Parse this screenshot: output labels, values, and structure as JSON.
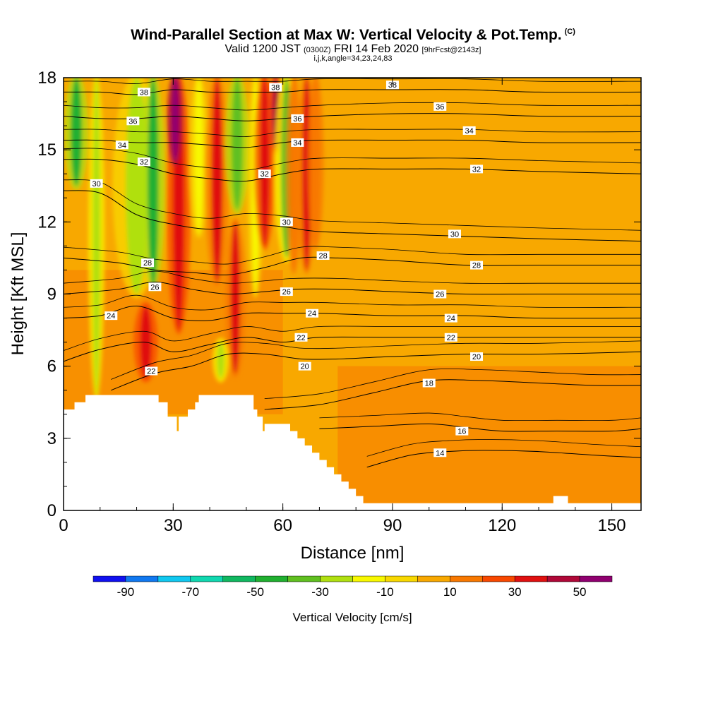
{
  "header": {
    "title": "Wind-Parallel Section at Max W: Vertical Velocity & Pot.Temp.",
    "title_mark": "(C)",
    "subtitle_valid": "Valid 1200 JST",
    "subtitle_z": "(0300Z)",
    "subtitle_date": "FRI 14 Feb 2020",
    "subtitle_fcst": "[9hrFcst@2143z]",
    "subline": "i,j,k,angle=34,23,24,83"
  },
  "chart_data": {
    "type": "heatmap",
    "xlabel": "Distance [nm]",
    "ylabel": "Height [Kft MSL]",
    "xlim": [
      0,
      158
    ],
    "ylim": [
      0,
      18
    ],
    "x_ticks": [
      "0",
      "30",
      "60",
      "90",
      "120",
      "150"
    ],
    "y_ticks": [
      "0",
      "3",
      "6",
      "9",
      "12",
      "15",
      "18"
    ],
    "colorbar": {
      "label": "Vertical Velocity [cm/s]",
      "tick_labels": [
        "-90",
        "-70",
        "-50",
        "-30",
        "-10",
        "10",
        "30",
        "50"
      ],
      "bins": [
        -100,
        -90,
        -80,
        -70,
        -60,
        -50,
        -40,
        -30,
        -20,
        -10,
        0,
        10,
        20,
        30,
        40,
        50,
        60
      ],
      "colors": [
        "#1010f0",
        "#1078f0",
        "#10c8f0",
        "#10d8b0",
        "#10b860",
        "#20b030",
        "#60c020",
        "#b0e010",
        "#f8f800",
        "#f8d800",
        "#f8a800",
        "#f87800",
        "#f84800",
        "#e01010",
        "#b00838",
        "#900070"
      ]
    },
    "background_w_cms": 5,
    "updraft_bands": [
      {
        "x": 9,
        "y0": 4.8,
        "y1": 18,
        "w": 1,
        "w_cms": -30
      },
      {
        "x": 3.5,
        "y0": 13.5,
        "y1": 18,
        "w": 1.5,
        "w_cms": -45
      },
      {
        "x": 20,
        "y0": 9,
        "y1": 18,
        "w": 3,
        "w_cms": -25
      },
      {
        "x": 24.5,
        "y0": 9.3,
        "y1": 18,
        "w": 1.5,
        "w_cms": -45
      },
      {
        "x": 22.5,
        "y0": 5.5,
        "y1": 8.5,
        "w": 1.5,
        "w_cms": 35
      },
      {
        "x": 31.5,
        "y0": 7.5,
        "y1": 18,
        "w": 1.5,
        "w_cms": 35
      },
      {
        "x": 30.5,
        "y0": 14.5,
        "y1": 18,
        "w": 1,
        "w_cms": 55
      },
      {
        "x": 37,
        "y0": 11.5,
        "y1": 18,
        "w": 1.2,
        "w_cms": -20
      },
      {
        "x": 42,
        "y0": 9.5,
        "y1": 18,
        "w": 1.5,
        "w_cms": 30
      },
      {
        "x": 47,
        "y0": 5.7,
        "y1": 12,
        "w": 1.3,
        "w_cms": 30
      },
      {
        "x": 43,
        "y0": 5.5,
        "y1": 7,
        "w": 1,
        "w_cms": -30
      },
      {
        "x": 47.5,
        "y0": 12.5,
        "y1": 18,
        "w": 1.5,
        "w_cms": -40
      },
      {
        "x": 52.5,
        "y0": 9,
        "y1": 18,
        "w": 1,
        "w_cms": -15
      },
      {
        "x": 55,
        "y0": 11,
        "y1": 18,
        "w": 1.3,
        "w_cms": 35
      },
      {
        "x": 58,
        "y0": 15,
        "y1": 18,
        "w": 1,
        "w_cms": 40
      },
      {
        "x": 61,
        "y0": 10.5,
        "y1": 18,
        "w": 1.5,
        "w_cms": -35
      },
      {
        "x": 63,
        "y0": 10,
        "y1": 18,
        "w": 1,
        "w_cms": 10
      },
      {
        "x": 66.5,
        "y0": 10,
        "y1": 18,
        "w": 1.2,
        "w_cms": 30
      },
      {
        "x": 69,
        "y0": 11,
        "y1": 18,
        "w": 1,
        "w_cms": 15
      }
    ],
    "terrain_kft": {
      "x": [
        0,
        3,
        6,
        13,
        25,
        26,
        28.5,
        31,
        31.5,
        34,
        36,
        37,
        40,
        51,
        52,
        53,
        54.5,
        55,
        57,
        61,
        62,
        64,
        66,
        68,
        70,
        72,
        74,
        76,
        78,
        80,
        82,
        84,
        88,
        92,
        100,
        110,
        120,
        130,
        131,
        132,
        134,
        136,
        138,
        140,
        150,
        158
      ],
      "h": [
        4.2,
        4.5,
        4.8,
        4.8,
        4.8,
        4.5,
        3.9,
        3.3,
        3.9,
        4.2,
        4.5,
        4.8,
        4.8,
        4.8,
        4.2,
        3.9,
        3.3,
        3.6,
        3.6,
        3.6,
        3.3,
        3.0,
        2.7,
        2.4,
        2.1,
        1.8,
        1.5,
        1.2,
        0.9,
        0.6,
        0.3,
        0.3,
        0.3,
        0.3,
        0.3,
        0.3,
        0.3,
        0.3,
        0.3,
        0.3,
        0.6,
        0.6,
        0.3,
        0.3,
        0.3,
        0.3
      ]
    },
    "contours": [
      {
        "label": "14",
        "x": [
          83,
          95,
          105,
          115,
          130,
          145,
          158
        ],
        "h": [
          1.8,
          2.3,
          2.45,
          2.5,
          2.45,
          2.3,
          2.2
        ]
      },
      {
        "label": "16",
        "x": [
          70,
          85,
          100,
          110,
          120,
          135,
          150,
          158
        ],
        "h": [
          3.4,
          3.5,
          3.6,
          3.45,
          3.3,
          3.3,
          3.3,
          3.4
        ]
      },
      {
        "label": "18",
        "x": [
          55,
          70,
          85,
          100,
          115,
          130,
          145,
          158
        ],
        "h": [
          4.2,
          4.4,
          4.9,
          5.4,
          5.4,
          5.3,
          5.2,
          5.2
        ]
      },
      {
        "label": "20",
        "x": [
          13,
          25,
          35,
          45,
          55,
          65,
          75,
          90,
          110,
          130,
          158
        ],
        "h": [
          5.0,
          5.7,
          6.0,
          6.5,
          6.5,
          6.3,
          6.3,
          6.4,
          6.5,
          6.5,
          6.6
        ]
      },
      {
        "label": "22",
        "x": [
          0,
          10,
          22,
          30,
          40,
          50,
          60,
          70,
          90,
          110,
          130,
          158
        ],
        "h": [
          6.2,
          6.7,
          7.0,
          6.6,
          6.9,
          7.2,
          7.0,
          7.2,
          7.2,
          7.2,
          7.2,
          7.2
        ]
      },
      {
        "label": "24",
        "x": [
          0,
          10,
          20,
          30,
          40,
          50,
          60,
          70,
          90,
          110,
          130,
          158
        ],
        "h": [
          8.0,
          8.1,
          8.5,
          8.0,
          7.9,
          8.2,
          8.2,
          8.2,
          8.1,
          8.1,
          8.0,
          8.0
        ]
      },
      {
        "label": "26",
        "x": [
          0,
          15,
          25,
          35,
          45,
          55,
          63,
          75,
          90,
          110,
          130,
          158
        ],
        "h": [
          9.0,
          9.2,
          9.5,
          9.2,
          9.0,
          9.1,
          9.2,
          9.2,
          9.1,
          9.0,
          9.0,
          9.0
        ]
      },
      {
        "label": "28",
        "x": [
          0,
          15,
          25,
          35,
          45,
          55,
          65,
          75,
          90,
          110,
          130,
          158
        ],
        "h": [
          10.5,
          10.3,
          10.0,
          9.9,
          9.8,
          10.1,
          10.5,
          10.5,
          10.4,
          10.2,
          10.2,
          10.2
        ]
      },
      {
        "label": "30",
        "x": [
          0,
          10,
          20,
          30,
          40,
          50,
          60,
          70,
          90,
          110,
          130,
          158
        ],
        "h": [
          13.3,
          13.2,
          12.3,
          11.9,
          11.7,
          11.9,
          11.8,
          11.6,
          11.5,
          11.4,
          11.3,
          11.2
        ]
      },
      {
        "label": "32",
        "x": [
          0,
          10,
          20,
          30,
          40,
          50,
          60,
          70,
          90,
          110,
          130,
          158
        ],
        "h": [
          14.6,
          14.6,
          14.4,
          14.0,
          13.8,
          13.7,
          14.0,
          14.2,
          14.2,
          14.2,
          14.1,
          14.0
        ]
      },
      {
        "label": "34",
        "x": [
          0,
          10,
          20,
          30,
          40,
          50,
          60,
          70,
          90,
          110,
          130,
          158
        ],
        "h": [
          15.4,
          15.4,
          15.3,
          15.3,
          15.2,
          15.1,
          15.3,
          15.4,
          15.4,
          15.4,
          15.3,
          15.3
        ]
      },
      {
        "label": "36",
        "x": [
          0,
          10,
          20,
          30,
          40,
          50,
          60,
          70,
          90,
          110,
          130,
          158
        ],
        "h": [
          16.4,
          16.3,
          16.3,
          16.4,
          16.3,
          16.2,
          16.3,
          16.4,
          16.5,
          16.5,
          16.4,
          16.4
        ]
      },
      {
        "label": "38",
        "x": [
          0,
          10,
          20,
          30,
          40,
          50,
          60,
          70,
          90,
          110,
          130,
          158
        ],
        "h": [
          17.4,
          17.4,
          17.3,
          17.5,
          17.4,
          17.4,
          17.4,
          17.5,
          17.5,
          17.5,
          17.4,
          17.4
        ]
      }
    ],
    "contour_labels": [
      {
        "label": "14",
        "x": 103,
        "y": 2.4
      },
      {
        "label": "16",
        "x": 109,
        "y": 3.3
      },
      {
        "label": "18",
        "x": 100,
        "y": 5.3
      },
      {
        "label": "20",
        "x": 66,
        "y": 6.0
      },
      {
        "label": "20",
        "x": 113,
        "y": 6.4
      },
      {
        "label": "22",
        "x": 65,
        "y": 7.2
      },
      {
        "label": "22",
        "x": 106,
        "y": 7.2
      },
      {
        "label": "22",
        "x": 24,
        "y": 5.8
      },
      {
        "label": "24",
        "x": 13,
        "y": 8.1
      },
      {
        "label": "24",
        "x": 68,
        "y": 8.2
      },
      {
        "label": "24",
        "x": 106,
        "y": 8.0
      },
      {
        "label": "26",
        "x": 25,
        "y": 9.3
      },
      {
        "label": "26",
        "x": 61,
        "y": 9.1
      },
      {
        "label": "26",
        "x": 103,
        "y": 9.0
      },
      {
        "label": "28",
        "x": 23,
        "y": 10.3
      },
      {
        "label": "28",
        "x": 71,
        "y": 10.6
      },
      {
        "label": "28",
        "x": 113,
        "y": 10.2
      },
      {
        "label": "30",
        "x": 9,
        "y": 13.6
      },
      {
        "label": "30",
        "x": 61,
        "y": 12.0
      },
      {
        "label": "30",
        "x": 107,
        "y": 11.5
      },
      {
        "label": "32",
        "x": 22,
        "y": 14.5
      },
      {
        "label": "32",
        "x": 55,
        "y": 14.0
      },
      {
        "label": "32",
        "x": 113,
        "y": 14.2
      },
      {
        "label": "34",
        "x": 16,
        "y": 15.2
      },
      {
        "label": "34",
        "x": 64,
        "y": 15.3
      },
      {
        "label": "34",
        "x": 111,
        "y": 15.8
      },
      {
        "label": "36",
        "x": 19,
        "y": 16.2
      },
      {
        "label": "36",
        "x": 64,
        "y": 16.3
      },
      {
        "label": "36",
        "x": 103,
        "y": 16.8
      },
      {
        "label": "38",
        "x": 22,
        "y": 17.4
      },
      {
        "label": "38",
        "x": 58,
        "y": 17.6
      },
      {
        "label": "38",
        "x": 90,
        "y": 17.7
      }
    ]
  }
}
